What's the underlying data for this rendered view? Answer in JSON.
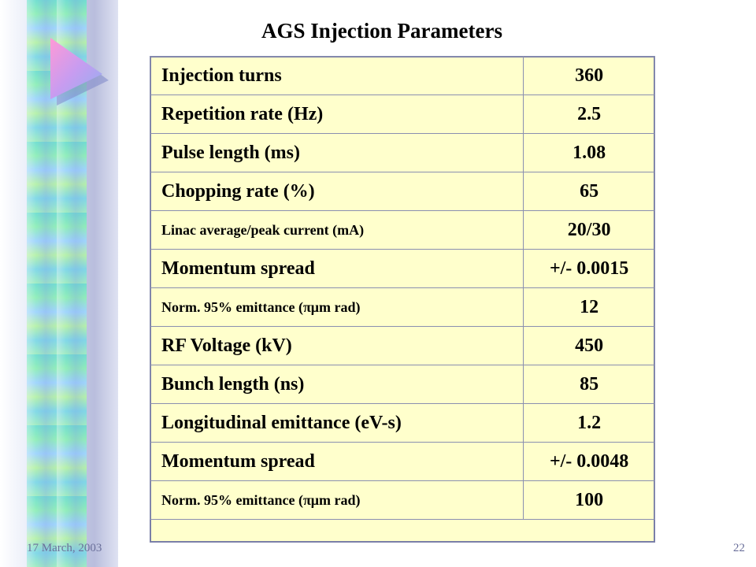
{
  "slide": {
    "title": "AGS Injection Parameters",
    "date": "17 March, 2003",
    "page_number": "22"
  },
  "table": {
    "rows": [
      {
        "label": "Injection turns",
        "value": "360",
        "size": "big"
      },
      {
        "label": "Repetition rate (Hz)",
        "value": "2.5",
        "size": "big"
      },
      {
        "label": "Pulse length (ms)",
        "value": "1.08",
        "size": "big"
      },
      {
        "label": "Chopping rate (%)",
        "value": "65",
        "size": "big"
      },
      {
        "label": "Linac average/peak current (mA)",
        "value": "20/30",
        "size": "small"
      },
      {
        "label": "Momentum spread",
        "value": "+/- 0.0015",
        "size": "big"
      },
      {
        "label": "Norm. 95% emittance (πμm rad)",
        "value": "12",
        "size": "small"
      },
      {
        "label": "RF Voltage (kV)",
        "value": "450",
        "size": "big"
      },
      {
        "label": "Bunch length (ns)",
        "value": "85",
        "size": "big"
      },
      {
        "label": "Longitudinal emittance (eV-s)",
        "value": "1.2",
        "size": "big"
      },
      {
        "label": "Momentum spread",
        "value": "+/- 0.0048",
        "size": "big"
      },
      {
        "label": "Norm. 95% emittance (πμm rad)",
        "value": "100",
        "size": "small"
      }
    ]
  },
  "colors": {
    "table_background": "#ffffcc",
    "border": "#8a8fb0",
    "footer_text": "#6a6f9a"
  }
}
